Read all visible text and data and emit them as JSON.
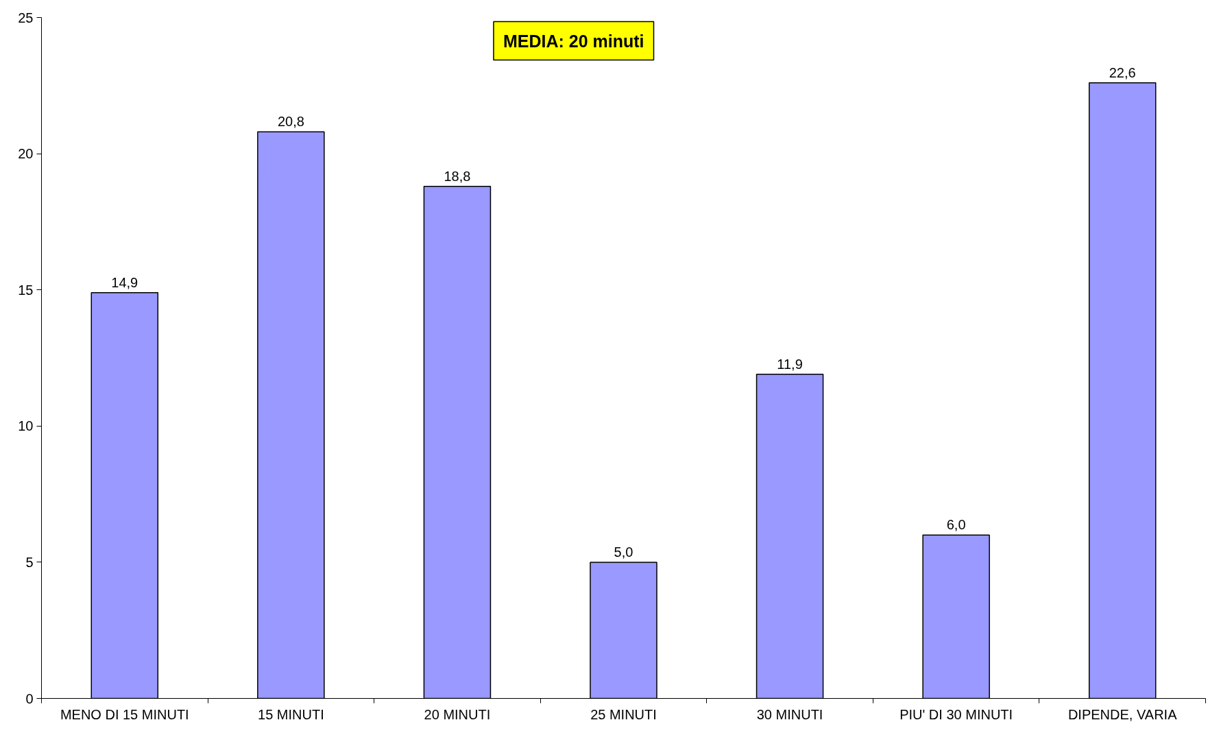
{
  "chart_data": {
    "type": "bar",
    "categories": [
      "MENO DI 15 MINUTI",
      "15 MINUTI",
      "20 MINUTI",
      "25 MINUTI",
      "30 MINUTI",
      "PIU' DI 30 MINUTI",
      "DIPENDE, VARIA"
    ],
    "values": [
      14.9,
      20.8,
      18.8,
      5.0,
      11.9,
      6.0,
      22.6
    ],
    "value_labels": [
      "14,9",
      "20,8",
      "18,8",
      "5,0",
      "11,9",
      "6,0",
      "22,6"
    ],
    "color": "#9999ff",
    "ylim": [
      0,
      25
    ],
    "yticks": [
      0,
      5,
      10,
      15,
      20,
      25
    ],
    "grid": false,
    "annotations": [
      "MEDIA: 20 minuti"
    ]
  }
}
